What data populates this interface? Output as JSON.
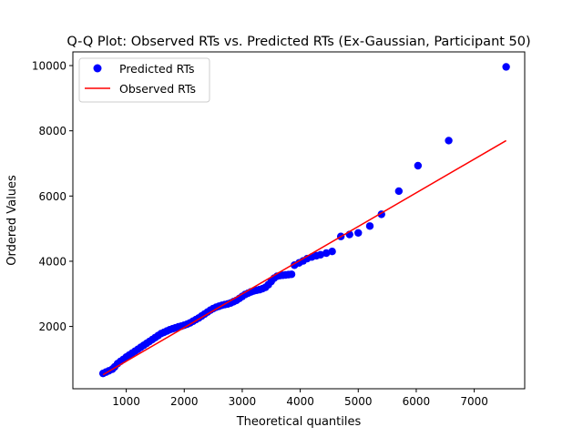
{
  "chart_data": {
    "type": "scatter",
    "title": "Q-Q Plot: Observed RTs vs. Predicted RTs (Ex-Gaussian, Participant 50)",
    "xlabel": "Theoretical quantiles",
    "ylabel": "Ordered Values",
    "xlim": [
      80,
      7870
    ],
    "ylim": [
      90,
      10420
    ],
    "xticks": [
      1000,
      2000,
      3000,
      4000,
      5000,
      6000,
      7000
    ],
    "yticks": [
      2000,
      4000,
      6000,
      8000,
      10000
    ],
    "legend_position": "upper-left",
    "grid": false,
    "series": [
      {
        "name": "Predicted RTs",
        "kind": "points",
        "color": "#0000ff",
        "x": [
          600,
          650,
          700,
          760,
          800,
          850,
          900,
          950,
          1000,
          1050,
          1100,
          1150,
          1200,
          1250,
          1300,
          1350,
          1400,
          1450,
          1500,
          1550,
          1600,
          1650,
          1700,
          1750,
          1800,
          1850,
          1900,
          1950,
          2000,
          2050,
          2100,
          2150,
          2200,
          2250,
          2300,
          2350,
          2400,
          2450,
          2500,
          2550,
          2600,
          2650,
          2700,
          2750,
          2800,
          2850,
          2900,
          2950,
          3000,
          3050,
          3100,
          3150,
          3200,
          3250,
          3300,
          3350,
          3400,
          3450,
          3500,
          3550,
          3600,
          3650,
          3700,
          3750,
          3800,
          3850,
          3900,
          3980,
          4050,
          4120,
          4200,
          4280,
          4350,
          4450,
          4550,
          4700,
          4850,
          5000,
          5200,
          5400,
          5700,
          6030,
          6560,
          7550
        ],
        "y": [
          560,
          600,
          640,
          690,
          760,
          860,
          930,
          990,
          1060,
          1120,
          1180,
          1240,
          1300,
          1360,
          1420,
          1480,
          1540,
          1600,
          1660,
          1720,
          1780,
          1820,
          1860,
          1900,
          1930,
          1960,
          1990,
          2010,
          2040,
          2070,
          2110,
          2160,
          2210,
          2260,
          2320,
          2380,
          2440,
          2500,
          2550,
          2590,
          2620,
          2650,
          2670,
          2690,
          2720,
          2760,
          2800,
          2860,
          2920,
          2980,
          3020,
          3060,
          3090,
          3110,
          3130,
          3160,
          3200,
          3280,
          3380,
          3480,
          3540,
          3560,
          3570,
          3580,
          3590,
          3600,
          3880,
          3950,
          4010,
          4080,
          4130,
          4170,
          4200,
          4250,
          4300,
          4760,
          4820,
          4870,
          5080,
          5440,
          6150,
          6930,
          7700,
          9960
        ]
      },
      {
        "name": "Observed RTs",
        "kind": "line",
        "color": "#ff0000",
        "x": [
          600,
          7550
        ],
        "y": [
          520,
          7700
        ]
      }
    ]
  }
}
